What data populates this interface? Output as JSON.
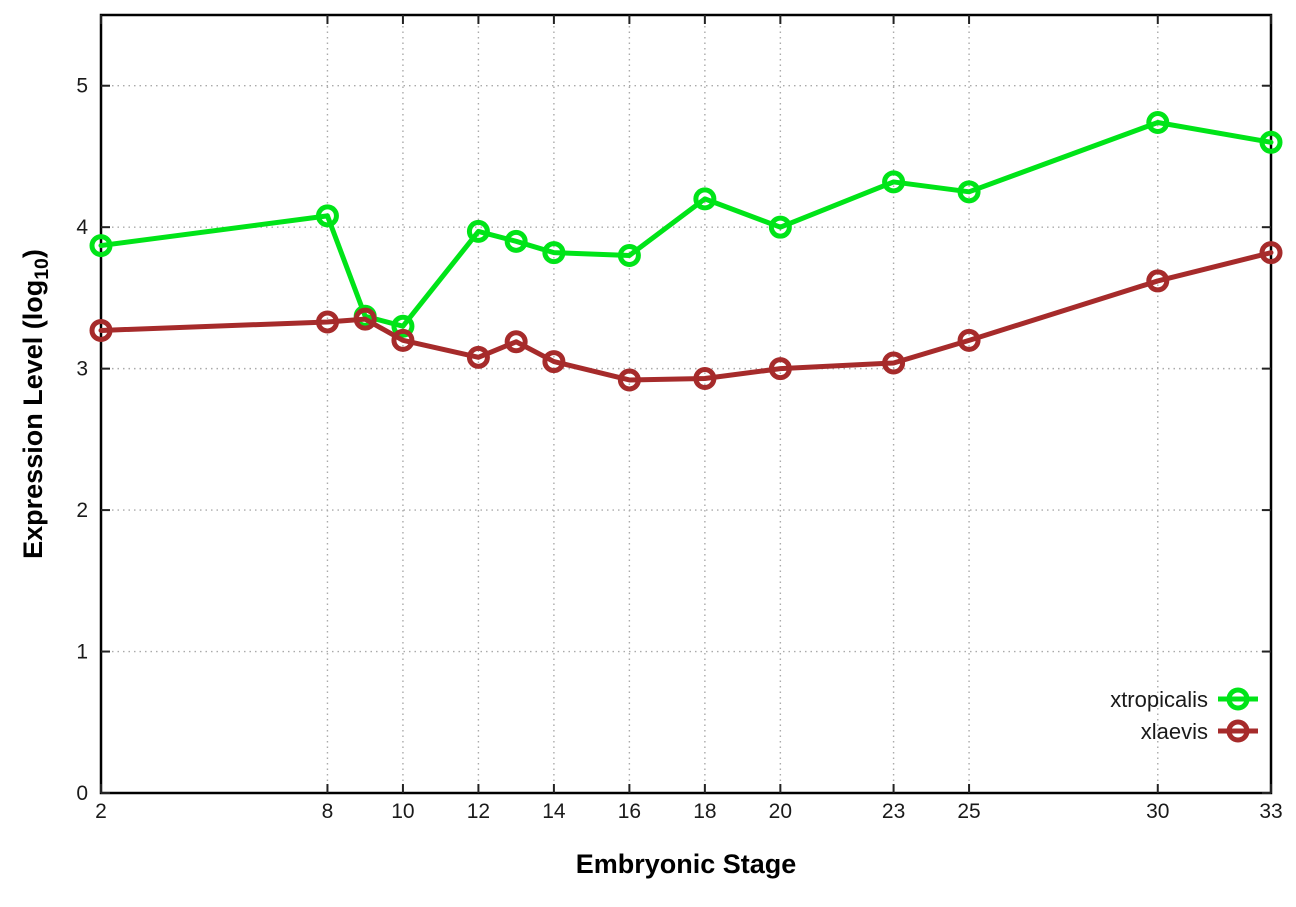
{
  "figure": {
    "background": "#ffffff",
    "border_color": "#000000",
    "grid_color": "#aaaaaa",
    "tick_text_color": "#1a1a1a"
  },
  "chart_data": {
    "type": "line",
    "title": "",
    "xlabel": "Embryonic Stage",
    "ylabel_pre": "Expression Level (log",
    "ylabel_sub": "10",
    "ylabel_post": ")",
    "x": [
      2,
      8,
      9,
      10,
      12,
      13,
      14,
      16,
      18,
      20,
      23,
      25,
      30,
      33
    ],
    "xtick_labels": [
      "2",
      "8",
      "10",
      "12",
      "14",
      "16",
      "18",
      "20",
      "23",
      "25",
      "30",
      "33"
    ],
    "xtick_values": [
      2,
      8,
      10,
      12,
      14,
      16,
      18,
      20,
      23,
      25,
      30,
      33
    ],
    "ytick_labels": [
      "0",
      "1",
      "2",
      "3",
      "4",
      "5"
    ],
    "ytick_values": [
      0,
      1,
      2,
      3,
      4,
      5
    ],
    "xlim": [
      2,
      33
    ],
    "ylim": [
      0,
      5.5
    ],
    "grid": true,
    "legend_position": "inside-bottom-right",
    "marker": "open-circle",
    "series": [
      {
        "name": "xtropicalis",
        "color": "#00e418",
        "values": [
          3.87,
          4.08,
          3.37,
          3.3,
          3.97,
          3.9,
          3.82,
          3.8,
          4.2,
          4.0,
          4.32,
          4.25,
          4.74,
          4.6
        ]
      },
      {
        "name": "xlaevis",
        "color": "#a62b2b",
        "values": [
          3.27,
          3.33,
          3.35,
          3.2,
          3.08,
          3.19,
          3.05,
          2.92,
          2.93,
          3.0,
          3.04,
          3.2,
          3.62,
          3.82
        ]
      }
    ]
  }
}
